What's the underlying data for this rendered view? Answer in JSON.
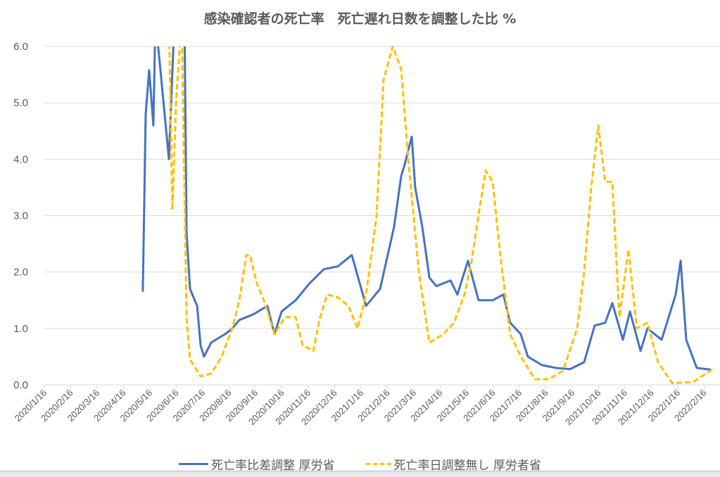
{
  "chart_data": {
    "type": "line",
    "title": "感染確認者の死亡率　死亡遅れ日数を調整した比 %",
    "xlabel": "",
    "ylabel": "",
    "ylim": [
      0,
      6
    ],
    "yticks": [
      "0.0",
      "1.0",
      "2.0",
      "3.0",
      "4.0",
      "5.0",
      "6.0"
    ],
    "x_unit": "months since 2020/1/16",
    "xlim": [
      0,
      25.4
    ],
    "xtick_labels": [
      "2020/1/16",
      "2020/2/16",
      "2020/3/16",
      "2020/4/16",
      "2020/5/16",
      "2020/6/16",
      "2020/7/16",
      "2020/8/16",
      "2020/9/16",
      "2020/10/16",
      "2020/11/16",
      "2020/12/16",
      "2021/1/16",
      "2021/2/16",
      "2021/3/16",
      "2021/4/16",
      "2021/5/16",
      "2021/6/16",
      "2021/7/16",
      "2021/8/16",
      "2021/9/16",
      "2021/10/16",
      "2021/11/16",
      "2021/12/16",
      "2022/1/16",
      "2022/2/16"
    ],
    "grid": true,
    "legend_position": "bottom",
    "series": [
      {
        "name": "死亡率比差調整 厚労省",
        "color": "#4472c4",
        "style": "solid",
        "x": [
          3.73,
          3.84,
          3.97,
          4.05,
          4.13,
          4.21,
          4.72,
          4.93,
          5.31,
          5.39,
          5.52,
          5.79,
          5.92,
          6.05,
          6.32,
          6.85,
          7.12,
          7.39,
          7.92,
          8.45,
          8.72,
          8.99,
          9.52,
          10.05,
          10.59,
          11.12,
          11.65,
          12.19,
          12.72,
          13.25,
          13.52,
          13.65,
          13.92,
          14.05,
          14.32,
          14.59,
          14.85,
          15.39,
          15.65,
          16.05,
          16.45,
          16.99,
          17.39,
          17.65,
          18.05,
          18.32,
          18.85,
          19.39,
          19.92,
          20.45,
          20.85,
          21.25,
          21.52,
          21.92,
          22.19,
          22.59,
          22.85,
          23.39,
          23.92,
          24.11,
          24.32,
          24.72,
          25.25
        ],
        "y": [
          1.65,
          4.8,
          5.58,
          5.1,
          4.6,
          6.5,
          4.0,
          6.5,
          6.5,
          2.7,
          1.7,
          1.4,
          0.7,
          0.5,
          0.75,
          0.9,
          1.0,
          1.15,
          1.25,
          1.4,
          0.9,
          1.3,
          1.5,
          1.8,
          2.05,
          2.1,
          2.3,
          1.4,
          1.7,
          2.8,
          3.7,
          3.9,
          4.4,
          3.5,
          2.8,
          1.9,
          1.75,
          1.85,
          1.6,
          2.2,
          1.5,
          1.5,
          1.6,
          1.1,
          0.9,
          0.5,
          0.35,
          0.3,
          0.28,
          0.4,
          1.05,
          1.1,
          1.45,
          0.8,
          1.3,
          0.6,
          1.0,
          0.8,
          1.6,
          2.2,
          0.8,
          0.3,
          0.27
        ]
      },
      {
        "name": "死亡率日調整無し 厚労者省",
        "color": "#ffc000",
        "style": "dashed",
        "x": [
          4.72,
          4.85,
          4.99,
          5.2,
          5.39,
          5.52,
          5.92,
          6.32,
          6.72,
          7.12,
          7.39,
          7.65,
          7.79,
          8.05,
          8.32,
          8.72,
          9.12,
          9.52,
          9.79,
          10.19,
          10.45,
          10.72,
          11.12,
          11.52,
          11.87,
          12.19,
          12.59,
          12.85,
          13.2,
          13.52,
          13.79,
          14.19,
          14.59,
          15.12,
          15.52,
          15.92,
          16.19,
          16.45,
          16.72,
          16.99,
          17.25,
          17.65,
          18.05,
          18.59,
          19.12,
          19.65,
          20.19,
          20.45,
          20.72,
          20.99,
          21.25,
          21.52,
          21.79,
          22.13,
          22.45,
          22.85,
          23.25,
          23.79,
          24.59,
          25.39
        ],
        "y": [
          6.5,
          3.1,
          5.0,
          6.5,
          1.2,
          0.45,
          0.15,
          0.2,
          0.5,
          1.0,
          1.5,
          2.3,
          2.3,
          1.8,
          1.5,
          0.9,
          1.2,
          1.2,
          0.7,
          0.6,
          1.2,
          1.6,
          1.55,
          1.4,
          1.0,
          1.6,
          3.0,
          5.4,
          6.0,
          5.6,
          4.0,
          2.0,
          0.75,
          0.9,
          1.1,
          1.6,
          2.2,
          3.0,
          3.8,
          3.6,
          2.4,
          0.9,
          0.5,
          0.1,
          0.1,
          0.25,
          1.0,
          2.0,
          3.5,
          4.6,
          3.6,
          3.6,
          1.2,
          2.4,
          1.0,
          1.1,
          0.4,
          0.03,
          0.05,
          0.3
        ]
      }
    ]
  }
}
